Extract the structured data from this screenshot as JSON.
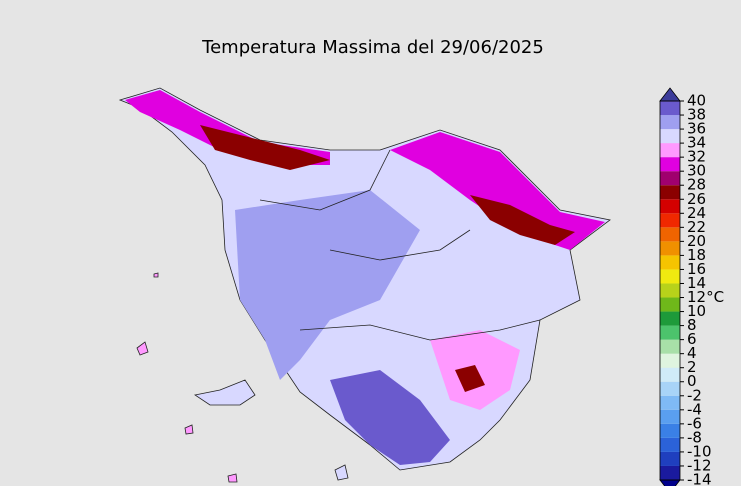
{
  "title": "Temperatura Massima del 29/06/2025",
  "colorbar": {
    "ticks": [
      -14,
      -12,
      -10,
      -8,
      -6,
      -4,
      -2,
      0,
      2,
      4,
      6,
      8,
      10,
      {
        "value": 12,
        "label": "12°C"
      },
      14,
      16,
      18,
      20,
      22,
      24,
      26,
      28,
      30,
      32,
      34,
      36,
      38,
      40
    ],
    "colors": [
      "#1a1a9e",
      "#1f3fbf",
      "#2b62d9",
      "#3a80e6",
      "#5a9ff0",
      "#7fbaf5",
      "#a8d4f8",
      "#d0ecf8",
      "#dff5df",
      "#a8e0a8",
      "#4cc36c",
      "#1e9a3a",
      "#6fb81a",
      "#b8d21a",
      "#f0ea10",
      "#f5c400",
      "#f09000",
      "#f06400",
      "#f02800",
      "#d40000",
      "#8b0000",
      "#a0006e",
      "#e000e0",
      "#ff99ff",
      "#d8d8ff",
      "#9f9ff0",
      "#6a5acd"
    ],
    "under_color": "#00008b",
    "over_color": "#3c3c9a"
  }
}
